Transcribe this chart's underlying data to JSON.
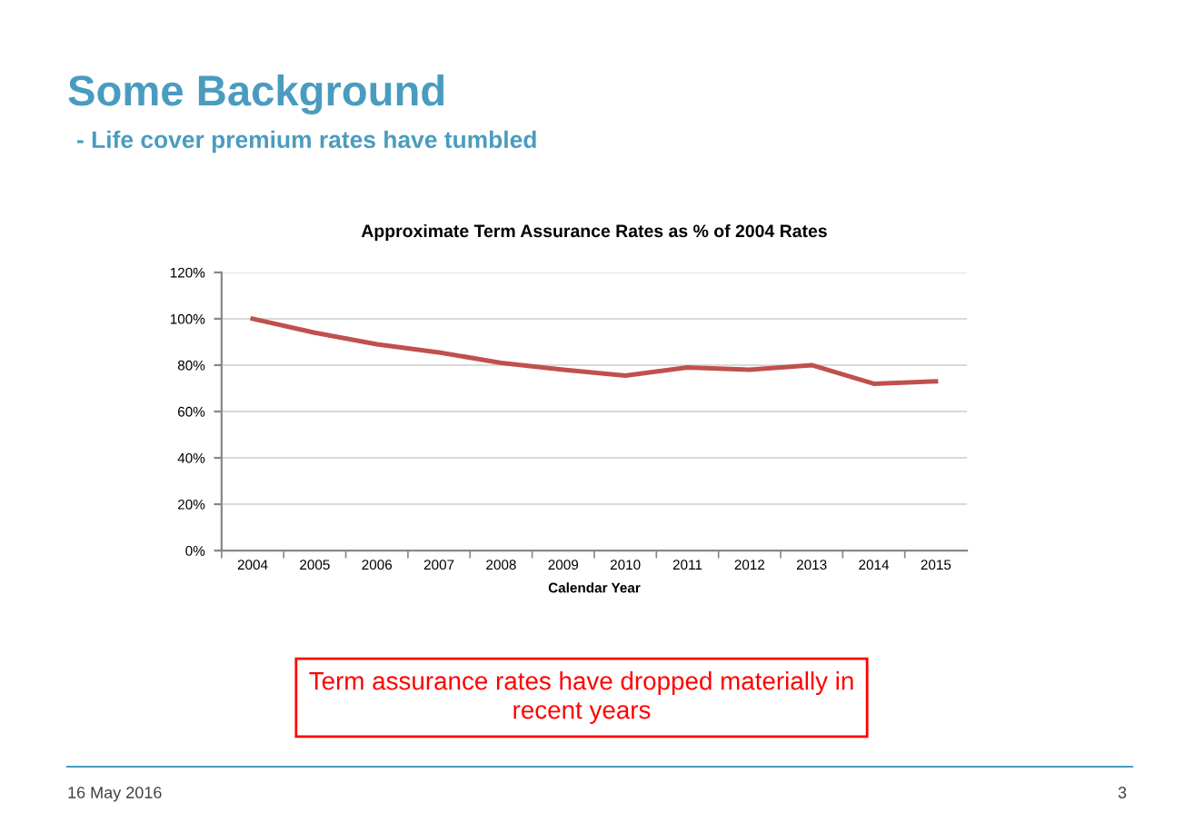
{
  "chart_data": {
    "type": "line",
    "title": "Approximate Term Assurance Rates as % of 2004 Rates",
    "xlabel": "Calendar Year",
    "categories": [
      "2004",
      "2005",
      "2006",
      "2007",
      "2008",
      "2009",
      "2010",
      "2011",
      "2012",
      "2013",
      "2014",
      "2015"
    ],
    "series": [
      {
        "color": "#c0504d",
        "values": [
          100,
          94,
          89,
          85.5,
          81,
          78,
          75.5,
          79,
          78,
          80,
          72,
          73
        ]
      }
    ],
    "ylim": [
      0,
      120
    ],
    "yticks": [
      {
        "value": 0,
        "label": "0%"
      },
      {
        "value": 20,
        "label": "20%"
      },
      {
        "value": 40,
        "label": "40%"
      },
      {
        "value": 60,
        "label": "60%"
      },
      {
        "value": 80,
        "label": "80%"
      },
      {
        "value": 100,
        "label": "100%"
      },
      {
        "value": 120,
        "label": "120%"
      }
    ],
    "grid": "y",
    "line_style": "solid",
    "marker": "none",
    "annotations": [
      "Some Background",
      "- Life cover premium rates have tumbled",
      "Term assurance rates have dropped materially in\nrecent years",
      "16 May 2016",
      "3"
    ]
  }
}
